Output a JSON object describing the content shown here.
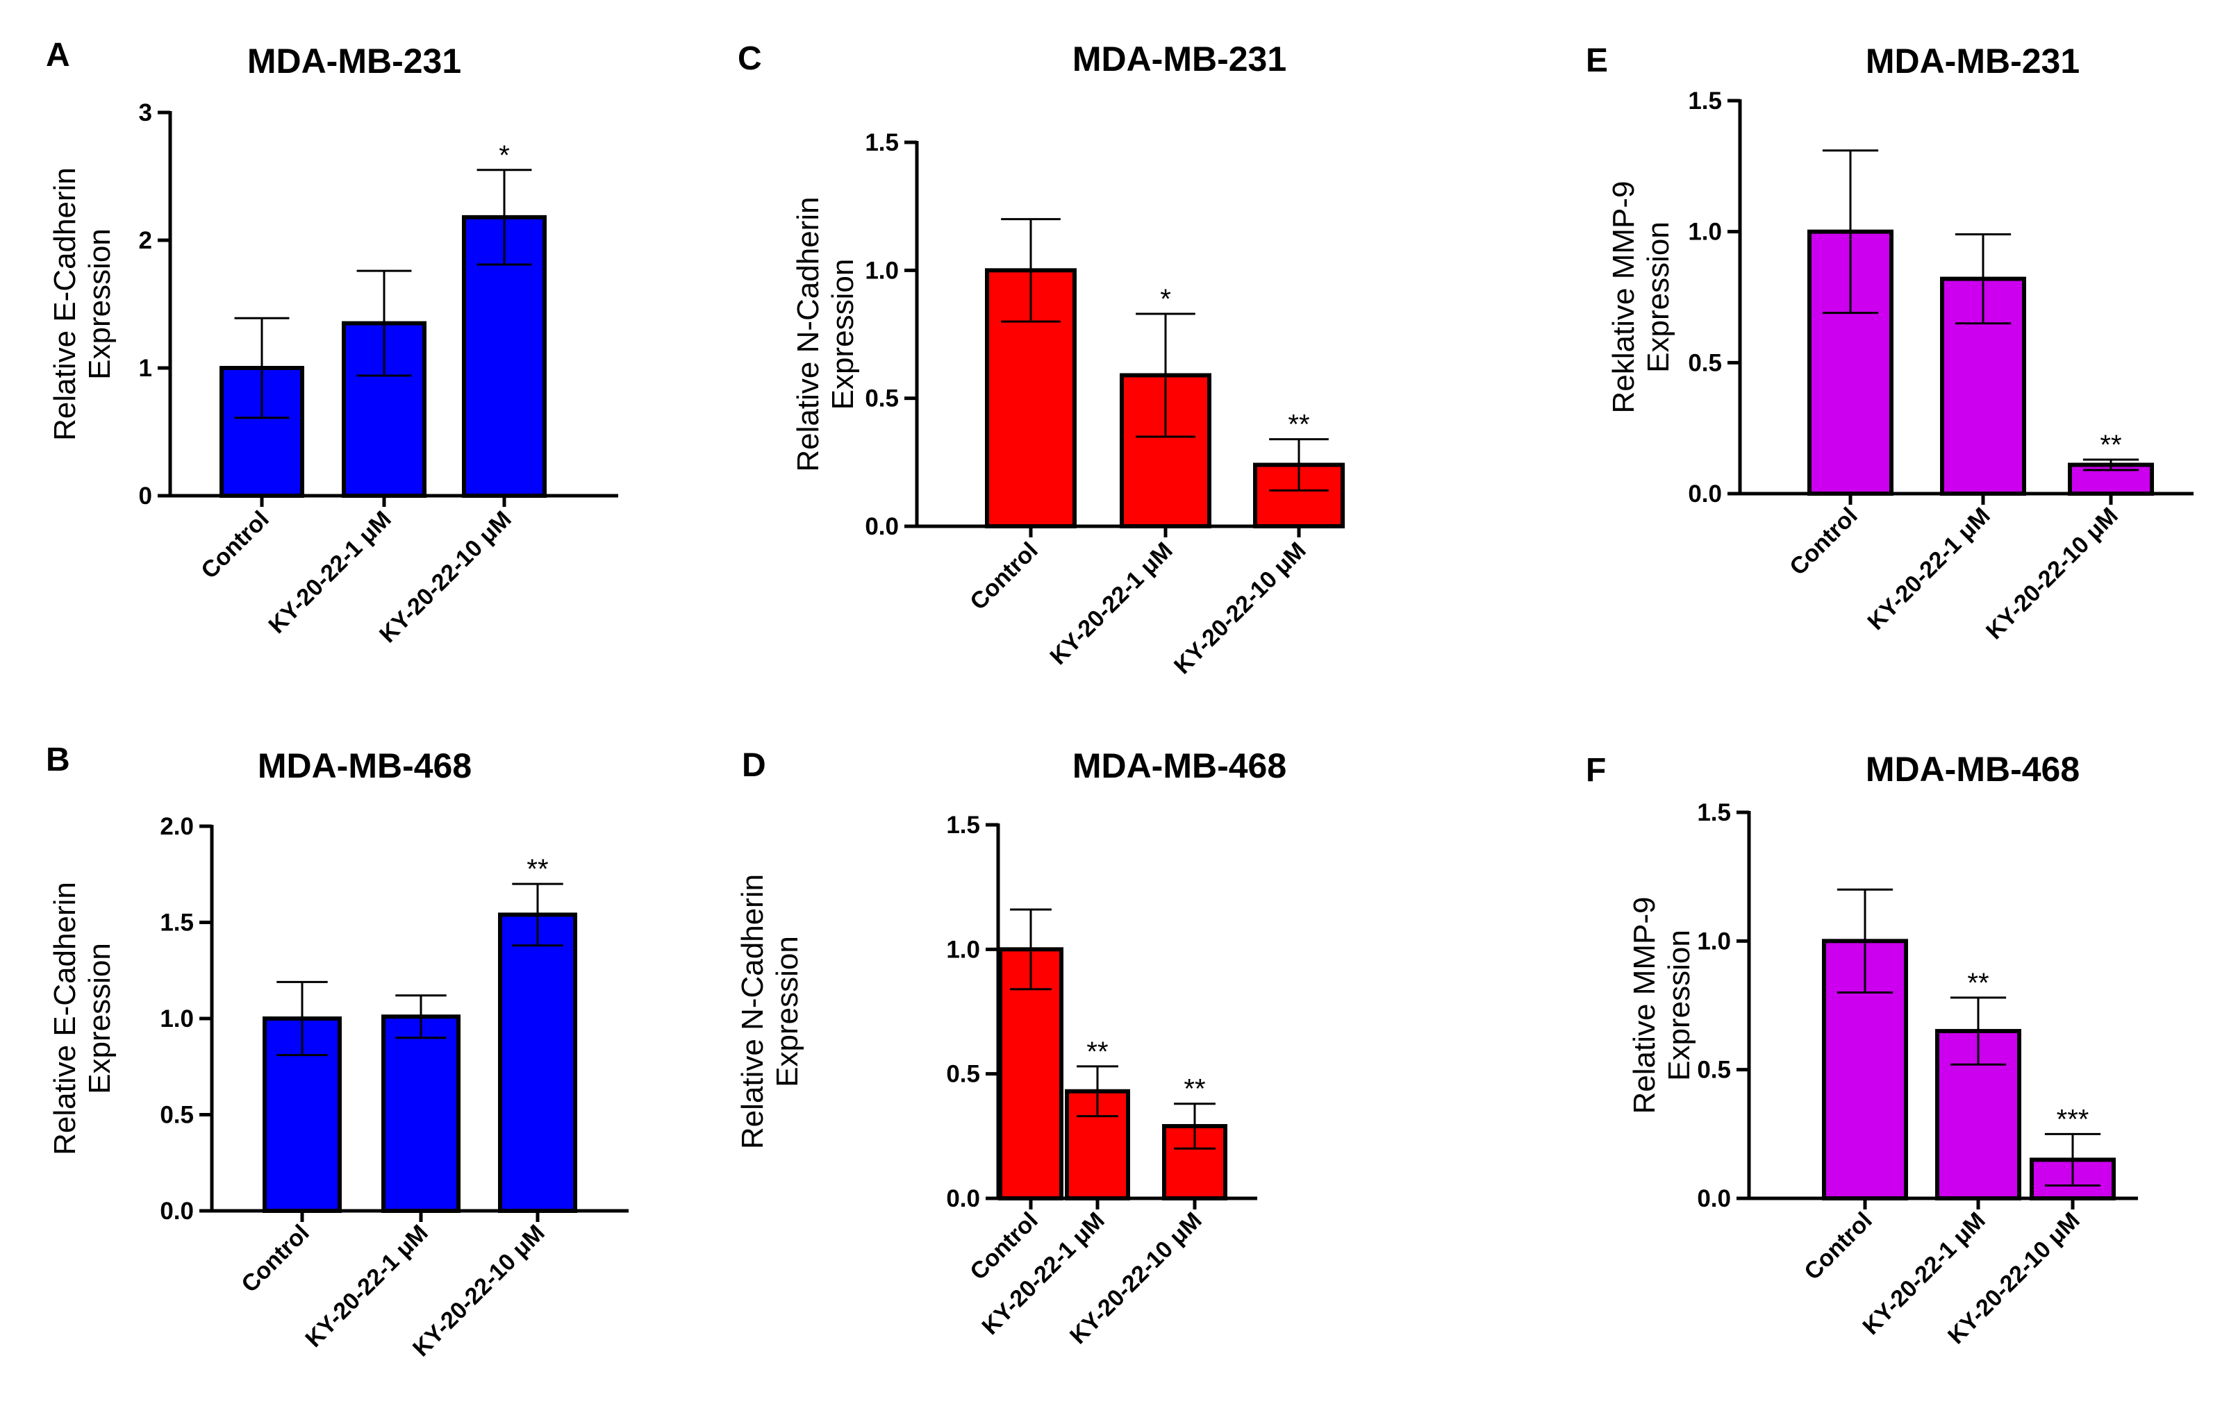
{
  "figure": {
    "background": "#ffffff"
  },
  "chart_data": [
    {
      "panel": "A",
      "type": "bar",
      "title": "MDA-MB-231",
      "ylabel_lines": [
        "Relative E-Cadherin",
        "Expression"
      ],
      "categories": [
        "Control",
        "KY-20-22-1 μM",
        "KY-20-22-10 μM"
      ],
      "values": [
        1.0,
        1.35,
        2.18
      ],
      "errors": [
        0.39,
        0.41,
        0.37
      ],
      "significance": [
        "",
        "",
        "*"
      ],
      "ylim": [
        0,
        3
      ],
      "yticks": [
        "0",
        "1",
        "2",
        "3"
      ],
      "ytick_values": [
        0,
        1,
        2,
        3
      ],
      "color": "#0000ff"
    },
    {
      "panel": "B",
      "type": "bar",
      "title": "MDA-MB-468",
      "ylabel_lines": [
        "Relative E-Cadherin",
        "Expression"
      ],
      "categories": [
        "Control",
        "KY-20-22-1 μM",
        "KY-20-22-10 μM"
      ],
      "values": [
        1.0,
        1.01,
        1.54
      ],
      "errors": [
        0.19,
        0.11,
        0.16
      ],
      "significance": [
        "",
        "",
        "**"
      ],
      "ylim": [
        0,
        2
      ],
      "yticks": [
        "0.0",
        "0.5",
        "1.0",
        "1.5",
        "2.0"
      ],
      "ytick_values": [
        0,
        0.5,
        1,
        1.5,
        2
      ],
      "color": "#0000ff"
    },
    {
      "panel": "C",
      "type": "bar",
      "title": "MDA-MB-231",
      "ylabel_lines": [
        "Relative N-Cadherin",
        "Expression"
      ],
      "categories": [
        "Control",
        "KY-20-22-1 μM",
        "KY-20-22-10 μM"
      ],
      "values": [
        1.0,
        0.59,
        0.24
      ],
      "errors": [
        0.2,
        0.24,
        0.1
      ],
      "significance": [
        "",
        "*",
        "**"
      ],
      "ylim": [
        0,
        1.5
      ],
      "yticks": [
        "0.0",
        "0.5",
        "1.0",
        "1.5"
      ],
      "ytick_values": [
        0,
        0.5,
        1,
        1.5
      ],
      "color": "#ff0000"
    },
    {
      "panel": "D",
      "type": "bar",
      "title": "MDA-MB-468",
      "ylabel_lines": [
        "Relative N-Cadherin",
        "Expression"
      ],
      "categories": [
        "Control",
        "KY-20-22-1 μM",
        "KY-20-22-10 μM"
      ],
      "values": [
        1.0,
        0.43,
        0.29
      ],
      "errors": [
        0.16,
        0.1,
        0.09
      ],
      "significance": [
        "",
        "**",
        "**"
      ],
      "ylim": [
        0,
        1.5
      ],
      "yticks": [
        "0.0",
        "0.5",
        "1.0",
        "1.5"
      ],
      "ytick_values": [
        0,
        0.5,
        1,
        1.5
      ],
      "color": "#ff0000"
    },
    {
      "panel": "E",
      "type": "bar",
      "title": "MDA-MB-231",
      "ylabel_lines": [
        "Reklative MMP-9",
        "Expression"
      ],
      "categories": [
        "Control",
        "KY-20-22-1 μM",
        "KY-20-22-10 μM"
      ],
      "values": [
        1.0,
        0.82,
        0.11
      ],
      "errors": [
        0.31,
        0.17,
        0.02
      ],
      "significance": [
        "",
        "",
        "**"
      ],
      "ylim": [
        0,
        1.5
      ],
      "yticks": [
        "0.0",
        "0.5",
        "1.0",
        "1.5"
      ],
      "ytick_values": [
        0,
        0.5,
        1,
        1.5
      ],
      "color": "#cc00ee"
    },
    {
      "panel": "F",
      "type": "bar",
      "title": "MDA-MB-468",
      "ylabel_lines": [
        "Relative MMP-9",
        "Expression"
      ],
      "categories": [
        "Control",
        "KY-20-22-1 μM",
        "KY-20-22-10 μM"
      ],
      "values": [
        1.0,
        0.65,
        0.15
      ],
      "errors": [
        0.2,
        0.13,
        0.1
      ],
      "significance": [
        "",
        "**",
        "***"
      ],
      "ylim": [
        0,
        1.5
      ],
      "yticks": [
        "0.0",
        "0.5",
        "1.0",
        "1.5"
      ],
      "ytick_values": [
        0,
        0.5,
        1,
        1.5
      ],
      "color": "#cc00ee"
    }
  ]
}
